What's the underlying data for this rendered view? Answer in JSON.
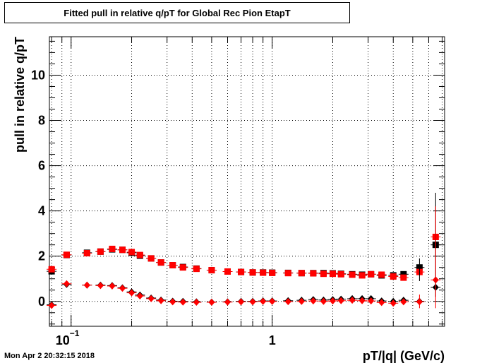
{
  "title": "Fitted pull in relative q/pT for Global Rec Pion EtapT",
  "footer": "Mon Apr  2 20:32:15 2018",
  "colors": {
    "series_black": "#000000",
    "series_red": "#ff0000",
    "grid": "#000000"
  },
  "chart_data": {
    "type": "scatter",
    "title": "Fitted pull in relative q/pT for Global Rec Pion EtapT",
    "xlabel": "pT/|q| (GeV/c)",
    "ylabel": "pull in relative q/pT",
    "x_scale": "log",
    "xlim": [
      0.078,
      7.2
    ],
    "ylim": [
      -1.1,
      11.7
    ],
    "grid": true,
    "x_ticks": [
      {
        "value": 0.1,
        "base": "10",
        "exp": "−1"
      },
      {
        "value": 1,
        "base": "1",
        "exp": ""
      }
    ],
    "y_ticks": [
      0,
      2,
      4,
      6,
      8,
      10
    ],
    "series": [
      {
        "marker": "square",
        "color": "#000000",
        "points": [
          [
            0.08,
            1.33
          ],
          [
            0.095,
            2.05
          ],
          [
            0.12,
            2.15
          ],
          [
            0.14,
            2.2
          ],
          [
            0.16,
            2.3
          ],
          [
            0.18,
            2.28
          ],
          [
            0.2,
            2.15
          ],
          [
            0.22,
            2.02
          ],
          [
            0.25,
            1.9
          ],
          [
            0.28,
            1.72
          ],
          [
            0.32,
            1.6
          ],
          [
            0.36,
            1.52
          ],
          [
            0.42,
            1.45
          ],
          [
            0.5,
            1.38
          ],
          [
            0.6,
            1.32
          ],
          [
            0.7,
            1.3
          ],
          [
            0.8,
            1.28
          ],
          [
            0.9,
            1.28
          ],
          [
            1.0,
            1.27
          ],
          [
            1.2,
            1.26
          ],
          [
            1.4,
            1.25
          ],
          [
            1.6,
            1.25
          ],
          [
            1.8,
            1.25
          ],
          [
            2.0,
            1.24
          ],
          [
            2.2,
            1.22
          ],
          [
            2.5,
            1.2
          ],
          [
            2.8,
            1.18
          ],
          [
            3.1,
            1.2
          ],
          [
            3.5,
            1.15
          ],
          [
            4.0,
            1.15
          ],
          [
            4.5,
            1.2
          ],
          [
            5.4,
            1.5
          ],
          [
            6.5,
            2.5
          ]
        ]
      },
      {
        "marker": "square",
        "color": "#ff0000",
        "points": [
          [
            0.08,
            1.42
          ],
          [
            0.095,
            2.06
          ],
          [
            0.12,
            2.13
          ],
          [
            0.14,
            2.2
          ],
          [
            0.16,
            2.32
          ],
          [
            0.18,
            2.28
          ],
          [
            0.2,
            2.18
          ],
          [
            0.22,
            2.05
          ],
          [
            0.25,
            1.9
          ],
          [
            0.28,
            1.72
          ],
          [
            0.32,
            1.6
          ],
          [
            0.36,
            1.5
          ],
          [
            0.42,
            1.44
          ],
          [
            0.5,
            1.38
          ],
          [
            0.6,
            1.32
          ],
          [
            0.7,
            1.3
          ],
          [
            0.8,
            1.28
          ],
          [
            0.9,
            1.27
          ],
          [
            1.0,
            1.26
          ],
          [
            1.2,
            1.25
          ],
          [
            1.4,
            1.25
          ],
          [
            1.6,
            1.24
          ],
          [
            1.8,
            1.22
          ],
          [
            2.0,
            1.22
          ],
          [
            2.2,
            1.2
          ],
          [
            2.5,
            1.18
          ],
          [
            2.8,
            1.15
          ],
          [
            3.1,
            1.2
          ],
          [
            3.5,
            1.18
          ],
          [
            4.0,
            1.1
          ],
          [
            4.5,
            1.05
          ],
          [
            5.4,
            1.3
          ],
          [
            6.5,
            2.85
          ]
        ]
      },
      {
        "marker": "diamond",
        "color": "#000000",
        "points": [
          [
            0.08,
            -0.15
          ],
          [
            0.095,
            0.75
          ],
          [
            0.12,
            0.72
          ],
          [
            0.14,
            0.72
          ],
          [
            0.16,
            0.7
          ],
          [
            0.18,
            0.6
          ],
          [
            0.2,
            0.42
          ],
          [
            0.22,
            0.28
          ],
          [
            0.25,
            0.15
          ],
          [
            0.28,
            0.06
          ],
          [
            0.32,
            0.01
          ],
          [
            0.36,
            0.0
          ],
          [
            0.42,
            -0.02
          ],
          [
            0.5,
            -0.03
          ],
          [
            0.6,
            -0.02
          ],
          [
            0.7,
            0.0
          ],
          [
            0.8,
            0.0
          ],
          [
            0.9,
            0.02
          ],
          [
            1.0,
            0.02
          ],
          [
            1.2,
            0.03
          ],
          [
            1.4,
            0.05
          ],
          [
            1.6,
            0.08
          ],
          [
            1.8,
            0.06
          ],
          [
            2.0,
            0.08
          ],
          [
            2.2,
            0.1
          ],
          [
            2.5,
            0.12
          ],
          [
            2.8,
            0.12
          ],
          [
            3.1,
            0.12
          ],
          [
            3.5,
            0.02
          ],
          [
            4.0,
            0.0
          ],
          [
            4.5,
            0.05
          ],
          [
            5.4,
            0.0
          ],
          [
            6.5,
            0.62
          ]
        ]
      },
      {
        "marker": "diamond",
        "color": "#ff0000",
        "points": [
          [
            0.08,
            -0.18
          ],
          [
            0.095,
            0.78
          ],
          [
            0.12,
            0.72
          ],
          [
            0.14,
            0.7
          ],
          [
            0.16,
            0.68
          ],
          [
            0.18,
            0.58
          ],
          [
            0.2,
            0.38
          ],
          [
            0.22,
            0.24
          ],
          [
            0.25,
            0.12
          ],
          [
            0.28,
            0.03
          ],
          [
            0.32,
            -0.02
          ],
          [
            0.36,
            -0.03
          ],
          [
            0.42,
            -0.04
          ],
          [
            0.5,
            -0.04
          ],
          [
            0.6,
            -0.03
          ],
          [
            0.7,
            -0.02
          ],
          [
            0.8,
            -0.02
          ],
          [
            0.9,
            0.0
          ],
          [
            1.0,
            0.0
          ],
          [
            1.2,
            -0.01
          ],
          [
            1.4,
            0.0
          ],
          [
            1.6,
            0.02
          ],
          [
            1.8,
            0.0
          ],
          [
            2.0,
            0.02
          ],
          [
            2.2,
            0.03
          ],
          [
            2.5,
            0.05
          ],
          [
            2.8,
            0.03
          ],
          [
            3.1,
            0.02
          ],
          [
            3.5,
            -0.05
          ],
          [
            4.0,
            -0.08
          ],
          [
            4.5,
            -0.02
          ],
          [
            5.4,
            -0.02
          ],
          [
            6.5,
            0.95
          ]
        ]
      }
    ]
  }
}
